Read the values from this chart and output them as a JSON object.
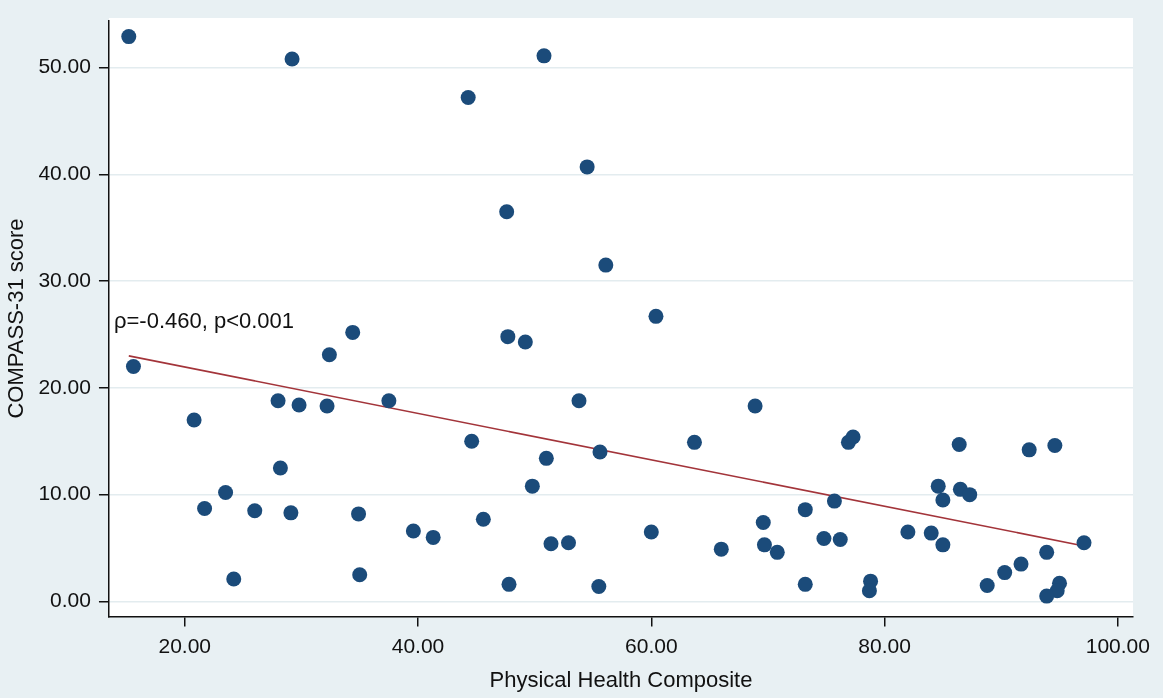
{
  "chart_data": {
    "type": "scatter",
    "xlabel": "Physical Health Composite",
    "ylabel": "COMPASS-31 score",
    "annotations": [
      "ρ=-0.460, p<0.001"
    ],
    "xlim": [
      13.5,
      101.3
    ],
    "ylim": [
      -1.4,
      54.4
    ],
    "xticks": [
      {
        "value": 20,
        "label": "20.00"
      },
      {
        "value": 40,
        "label": "40.00"
      },
      {
        "value": 60,
        "label": "60.00"
      },
      {
        "value": 80,
        "label": "80.00"
      },
      {
        "value": 100,
        "label": "100.00"
      }
    ],
    "yticks": [
      {
        "value": 0,
        "label": "0.00"
      },
      {
        "value": 10,
        "label": "10.00"
      },
      {
        "value": 20,
        "label": "20.00"
      },
      {
        "value": 30,
        "label": "30.00"
      },
      {
        "value": 40,
        "label": "40.00"
      },
      {
        "value": 50,
        "label": "50.00"
      }
    ],
    "grid": "y",
    "series": [
      {
        "color": "#1b4b7a",
        "marker": "circle",
        "x": [
          15.2,
          29.2,
          44.3,
          50.8,
          54.5,
          47.6,
          56.1,
          34.4,
          47.7,
          49.2,
          60.4,
          15.6,
          32.4,
          20.8,
          28.0,
          29.8,
          32.2,
          37.5,
          53.8,
          44.6,
          51.0,
          55.6,
          28.2,
          49.8,
          23.5,
          21.7,
          26.0,
          29.1,
          34.9,
          45.6,
          39.6,
          41.3,
          51.4,
          52.9,
          24.2,
          35.0,
          47.8,
          55.5,
          68.9,
          63.7,
          76.9,
          77.3,
          86.4,
          92.4,
          94.6,
          84.6,
          86.5,
          87.3,
          85.0,
          75.7,
          73.2,
          69.6,
          60.0,
          82.0,
          84.0,
          74.8,
          76.2,
          85.0,
          97.1,
          66.0,
          69.7,
          70.8,
          93.9,
          91.7,
          90.3,
          73.2,
          78.8,
          78.7,
          88.8,
          95.0,
          94.8,
          93.9
        ],
        "values": [
          52.9,
          50.8,
          47.2,
          51.1,
          40.7,
          36.5,
          31.5,
          25.2,
          24.8,
          24.3,
          26.7,
          22.0,
          23.1,
          17.0,
          18.8,
          18.4,
          18.3,
          18.8,
          18.8,
          15.0,
          13.4,
          14.0,
          12.5,
          10.8,
          10.2,
          8.7,
          8.5,
          8.3,
          8.2,
          7.7,
          6.6,
          6.0,
          5.4,
          5.5,
          2.1,
          2.5,
          1.6,
          1.4,
          18.3,
          14.9,
          14.9,
          15.4,
          14.7,
          14.2,
          14.6,
          10.8,
          10.5,
          10.0,
          9.5,
          9.4,
          8.6,
          7.4,
          6.5,
          6.5,
          6.4,
          5.9,
          5.8,
          5.3,
          5.5,
          4.9,
          5.3,
          4.6,
          4.6,
          3.5,
          2.7,
          1.6,
          1.9,
          1.0,
          1.5,
          1.7,
          1.0,
          0.5
        ]
      },
      {
        "type": "line",
        "color": "#a3343a",
        "x": [
          15.2,
          97.1
        ],
        "values": [
          23.0,
          5.2
        ]
      }
    ]
  }
}
